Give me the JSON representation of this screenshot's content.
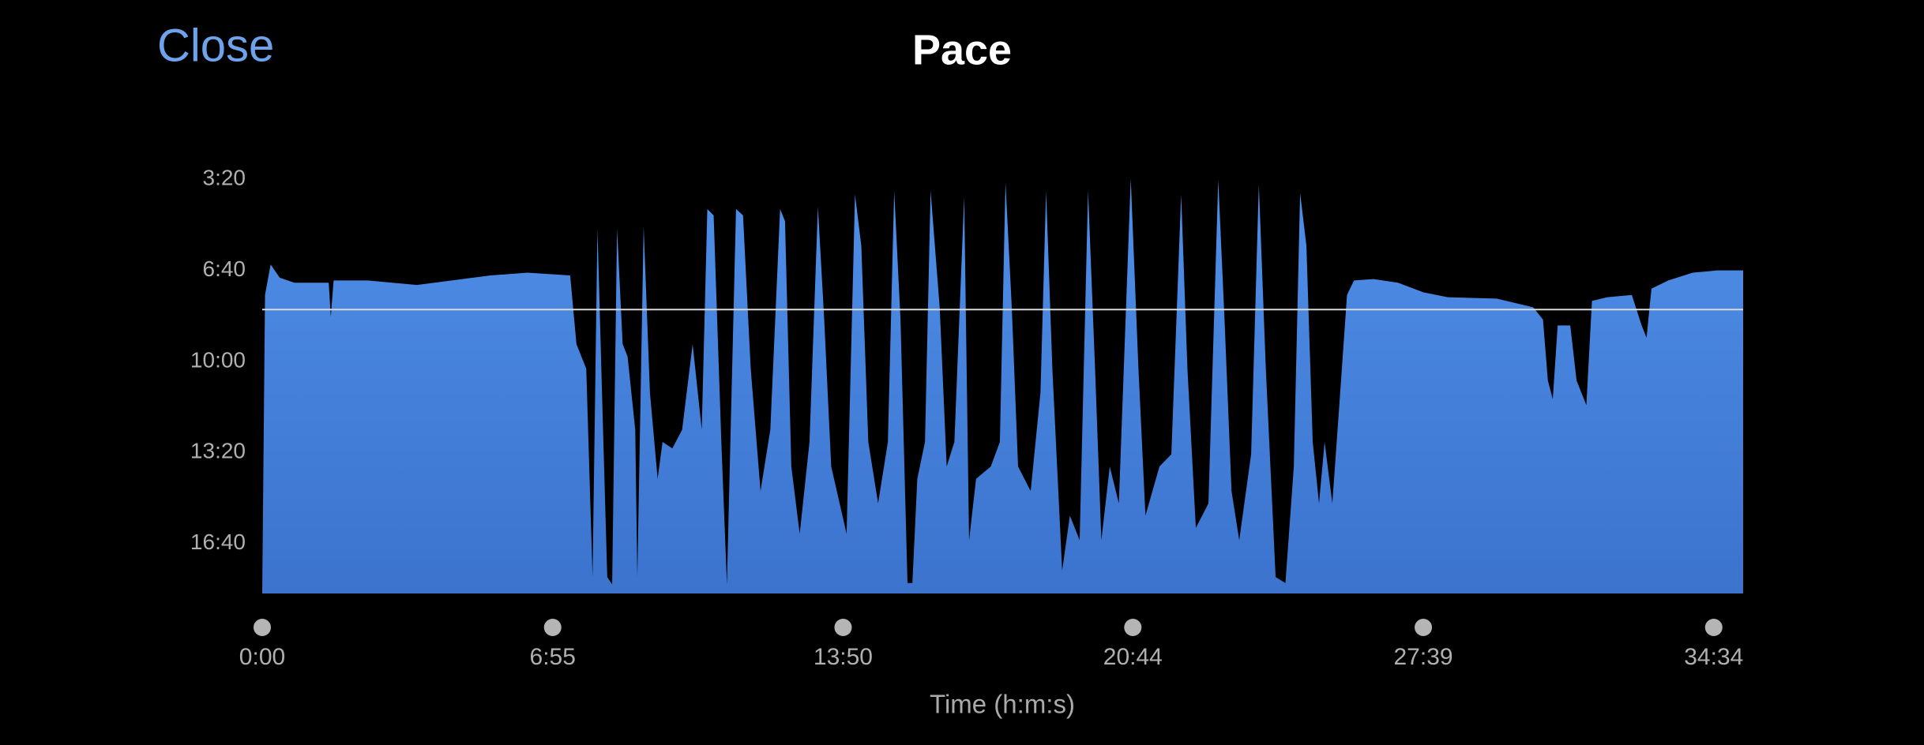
{
  "close_button": "Close",
  "chart_data": {
    "type": "area",
    "title": "Pace",
    "x_label": "Time (h:m:s)",
    "x": [
      0,
      4,
      12,
      25,
      46,
      95,
      98,
      102,
      151,
      221,
      326,
      379,
      440,
      449,
      463,
      472,
      479,
      486,
      493,
      500,
      507,
      515,
      522,
      533,
      536,
      545,
      554,
      565,
      572,
      586,
      600,
      615,
      628,
      636,
      645,
      656,
      664,
      677,
      687,
      698,
      712,
      726,
      740,
      747,
      756,
      768,
      782,
      794,
      803,
      813,
      835,
      847,
      856,
      866,
      880,
      894,
      903,
      912,
      922,
      929,
      936,
      947,
      955,
      968,
      978,
      989,
      1003,
      1010,
      1020,
      1041,
      1054,
      1062,
      1071,
      1080,
      1098,
      1112,
      1120,
      1129,
      1143,
      1154,
      1168,
      1180,
      1190,
      1199,
      1211,
      1224,
      1241,
      1252,
      1262,
      1282,
      1299,
      1313,
      1322,
      1334,
      1352,
      1366,
      1375,
      1385,
      1396,
      1413,
      1424,
      1434,
      1448,
      1462,
      1474,
      1483,
      1492,
      1501,
      1510,
      1518,
      1529,
      1539,
      1550,
      1560,
      1588,
      1623,
      1659,
      1694,
      1764,
      1816,
      1830,
      1837,
      1844,
      1851,
      1869,
      1878,
      1892,
      1900,
      1922,
      1957,
      1971,
      1978,
      1985,
      2009,
      2044,
      2079,
      2116
    ],
    "values": [
      1110,
      454,
      387,
      416,
      427,
      427,
      502,
      422,
      422,
      432,
      411,
      405,
      411,
      562,
      616,
      1074,
      308,
      696,
      1074,
      1090,
      308,
      562,
      589,
      750,
      1074,
      303,
      669,
      858,
      777,
      791,
      750,
      562,
      750,
      265,
      279,
      777,
      1090,
      265,
      279,
      616,
      885,
      750,
      265,
      292,
      831,
      979,
      777,
      260,
      508,
      831,
      979,
      233,
      346,
      777,
      912,
      777,
      225,
      508,
      1087,
      1087,
      858,
      777,
      225,
      481,
      831,
      777,
      238,
      993,
      858,
      831,
      777,
      206,
      481,
      831,
      885,
      669,
      225,
      616,
      1060,
      939,
      993,
      225,
      616,
      993,
      831,
      912,
      198,
      616,
      939,
      831,
      804,
      233,
      616,
      966,
      912,
      201,
      508,
      885,
      993,
      804,
      211,
      616,
      1074,
      1087,
      831,
      230,
      346,
      777,
      912,
      777,
      912,
      696,
      454,
      422,
      419,
      427,
      448,
      459,
      462,
      481,
      508,
      642,
      683,
      521,
      521,
      642,
      696,
      467,
      459,
      454,
      521,
      548,
      440,
      422,
      405,
      400,
      400
    ],
    "color_top": "#4f8fe8",
    "color_bottom": "#3b73cd",
    "average_pace": 486,
    "average_color": "#d8d8d8",
    "xlim": [
      0,
      2116
    ],
    "ylim": [
      1110,
      130
    ],
    "xticks": [
      {
        "value": 0,
        "label": "0:00"
      },
      {
        "value": 415,
        "label": "6:55"
      },
      {
        "value": 830,
        "label": "13:50"
      },
      {
        "value": 1244,
        "label": "20:44"
      },
      {
        "value": 1659,
        "label": "27:39"
      },
      {
        "value": 2074,
        "label": "34:34"
      }
    ],
    "yticks": [
      {
        "value": 200,
        "label": "3:20"
      },
      {
        "value": 400,
        "label": "6:40"
      },
      {
        "value": 600,
        "label": "10:00"
      },
      {
        "value": 800,
        "label": "13:20"
      },
      {
        "value": 1000,
        "label": "16:40"
      }
    ]
  }
}
